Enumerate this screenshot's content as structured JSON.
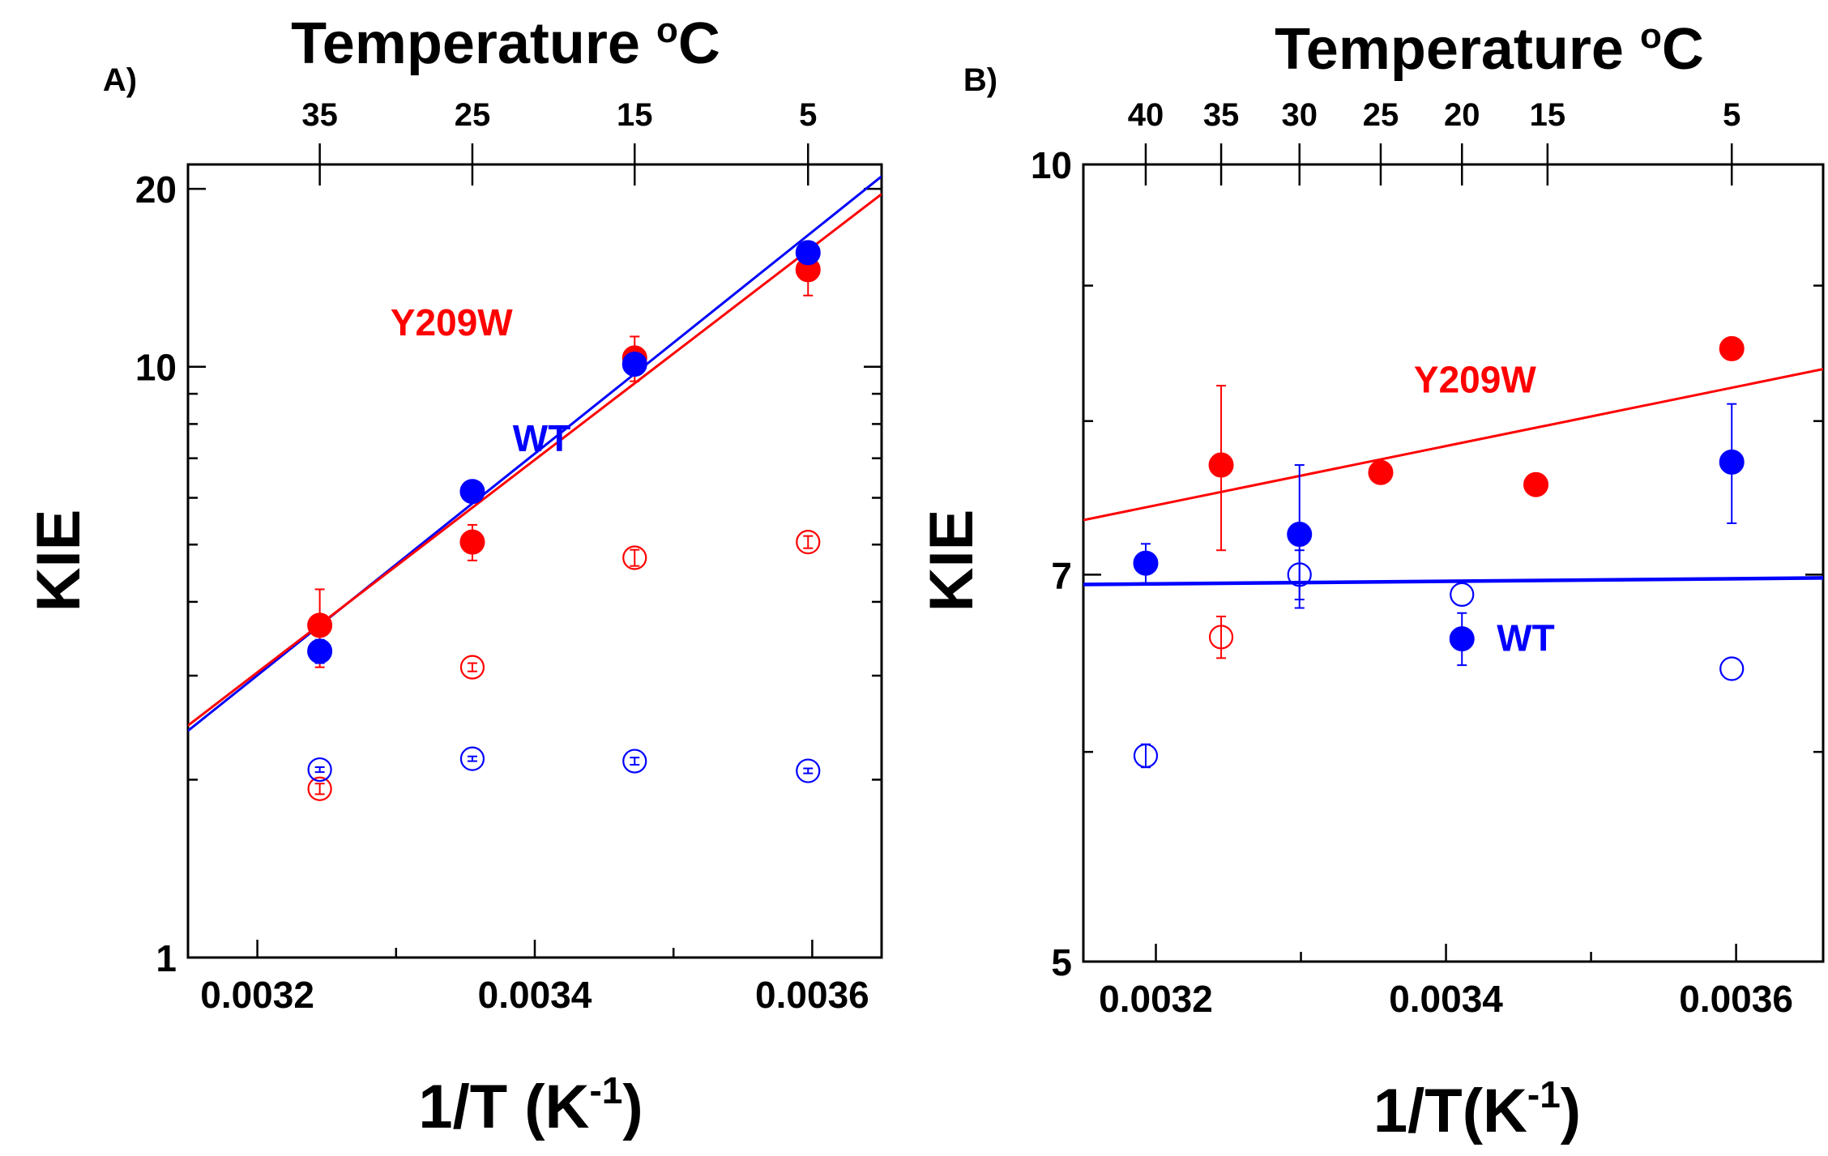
{
  "chart_data": [
    {
      "type": "scatter",
      "panel_label": "A)",
      "top_axis_title": "Temperature",
      "top_axis_unit": "C",
      "top_axis_degree": "o",
      "top_ticks": [
        "35",
        "25",
        "15",
        "5"
      ],
      "top_tick_x": [
        0.003245,
        0.003355,
        0.003472,
        0.003597
      ],
      "xlabel": "1/T (K",
      "xlabel_exp": "-1",
      "xlabel_close": ")",
      "ylabel": "KIE",
      "xlim": [
        0.00315,
        0.00365
      ],
      "ylim": [
        1,
        22
      ],
      "yscale": "log",
      "x_ticks": [
        0.0032,
        0.0034,
        0.0036
      ],
      "x_tick_labels": [
        "0.0032",
        "0.0034",
        "0.0036"
      ],
      "y_ticks": [
        1,
        10,
        20
      ],
      "y_tick_labels": [
        "1",
        "10",
        "20"
      ],
      "colors": {
        "wt": "#0000ff",
        "y209w": "#ff0000"
      },
      "annotations": [
        {
          "text": "Y209W",
          "series": "y209w",
          "x": 0.00334,
          "y": 11.3
        },
        {
          "text": "WT",
          "series": "wt",
          "x": 0.003405,
          "y": 7.2
        }
      ],
      "series": [
        {
          "name": "Y209W",
          "color": "#ff0000",
          "filled": true,
          "points": [
            {
              "x": 0.003245,
              "y": 3.65,
              "err": 0.55
            },
            {
              "x": 0.003355,
              "y": 5.05,
              "err": 0.35
            },
            {
              "x": 0.003472,
              "y": 10.35,
              "err": 0.9
            },
            {
              "x": 0.003597,
              "y": 14.6,
              "err": 1.4
            }
          ]
        },
        {
          "name": "WT",
          "color": "#0000ff",
          "filled": true,
          "points": [
            {
              "x": 0.003245,
              "y": 3.3,
              "err": 0.15
            },
            {
              "x": 0.003355,
              "y": 6.15,
              "err": 0.12
            },
            {
              "x": 0.003472,
              "y": 10.1,
              "err": 0.3
            },
            {
              "x": 0.003597,
              "y": 15.6,
              "err": 0.4
            }
          ]
        },
        {
          "name": "Y209W (open)",
          "color": "#ff0000",
          "filled": false,
          "points": [
            {
              "x": 0.003245,
              "y": 1.93,
              "err": 0.04
            },
            {
              "x": 0.003355,
              "y": 3.1,
              "err": 0.05
            },
            {
              "x": 0.003472,
              "y": 4.75,
              "err": 0.15
            },
            {
              "x": 0.003597,
              "y": 5.05,
              "err": 0.12
            }
          ]
        },
        {
          "name": "WT (open)",
          "color": "#0000ff",
          "filled": false,
          "points": [
            {
              "x": 0.003245,
              "y": 2.08,
              "err": 0.02
            },
            {
              "x": 0.003355,
              "y": 2.17,
              "err": 0.02
            },
            {
              "x": 0.003472,
              "y": 2.15,
              "err": 0.03
            },
            {
              "x": 0.003597,
              "y": 2.07,
              "err": 0.02
            }
          ]
        }
      ],
      "fits": [
        {
          "name": "WT fit",
          "color": "#0000ff",
          "x": [
            0.00315,
            0.00365
          ],
          "y": [
            2.42,
            21.0
          ]
        },
        {
          "name": "Y209W fit",
          "color": "#ff0000",
          "x": [
            0.00315,
            0.00365
          ],
          "y": [
            2.47,
            19.6
          ]
        }
      ]
    },
    {
      "type": "scatter",
      "panel_label": "B)",
      "top_axis_title": "Temperature",
      "top_axis_unit": "C",
      "top_axis_degree": "o",
      "top_ticks": [
        "40",
        "35",
        "30",
        "25",
        "20",
        "15",
        "5"
      ],
      "top_tick_x": [
        0.003193,
        0.003245,
        0.003299,
        0.003355,
        0.003411,
        0.00347,
        0.003597
      ],
      "xlabel": "1/T(K",
      "xlabel_exp": "-1",
      "xlabel_close": ")",
      "ylabel": "KIE",
      "xlim": [
        0.00315,
        0.00366
      ],
      "ylim": [
        5,
        10
      ],
      "yscale": "log",
      "x_ticks": [
        0.0032,
        0.0034,
        0.0036
      ],
      "x_tick_labels": [
        "0.0032",
        "0.0034",
        "0.0036"
      ],
      "y_ticks": [
        5,
        7,
        10
      ],
      "y_tick_labels": [
        "5",
        "7",
        "10"
      ],
      "colors": {
        "wt": "#0000ff",
        "y209w": "#ff0000"
      },
      "annotations": [
        {
          "text": "Y209W",
          "series": "y209w",
          "x": 0.00342,
          "y": 8.2
        },
        {
          "text": "WT",
          "series": "wt",
          "x": 0.003455,
          "y": 6.55
        }
      ],
      "series": [
        {
          "name": "Y209W",
          "color": "#ff0000",
          "filled": true,
          "points": [
            {
              "x": 0.003245,
              "y": 7.7,
              "err": 0.55
            },
            {
              "x": 0.003355,
              "y": 7.65,
              "err": 0.0
            },
            {
              "x": 0.003462,
              "y": 7.57,
              "err": 0.0
            },
            {
              "x": 0.003597,
              "y": 8.52,
              "err": 0.08
            }
          ]
        },
        {
          "name": "WT",
          "color": "#0000ff",
          "filled": true,
          "points": [
            {
              "x": 0.003193,
              "y": 7.07,
              "err": 0.12
            },
            {
              "x": 0.003299,
              "y": 7.25,
              "err": 0.45
            },
            {
              "x": 0.003411,
              "y": 6.62,
              "err": 0.15
            },
            {
              "x": 0.003597,
              "y": 7.72,
              "err": 0.4
            }
          ]
        },
        {
          "name": "Y209W (open)",
          "color": "#ff0000",
          "filled": false,
          "points": [
            {
              "x": 0.003245,
              "y": 6.63,
              "err": 0.12
            }
          ]
        },
        {
          "name": "WT (open)",
          "color": "#0000ff",
          "filled": false,
          "points": [
            {
              "x": 0.003193,
              "y": 5.98,
              "err": 0.06
            },
            {
              "x": 0.003299,
              "y": 7.0,
              "err": 0.15
            },
            {
              "x": 0.003411,
              "y": 6.88,
              "err": 0.0
            },
            {
              "x": 0.003597,
              "y": 6.45,
              "err": 0.0
            }
          ]
        }
      ],
      "fits": [
        {
          "name": "Y209W fit",
          "color": "#ff0000",
          "x": [
            0.00315,
            0.00366
          ],
          "y": [
            7.34,
            8.37
          ]
        },
        {
          "name": "WT fit",
          "color": "#0000ff",
          "x": [
            0.00315,
            0.00366
          ],
          "y": [
            6.94,
            6.98
          ]
        }
      ]
    }
  ]
}
